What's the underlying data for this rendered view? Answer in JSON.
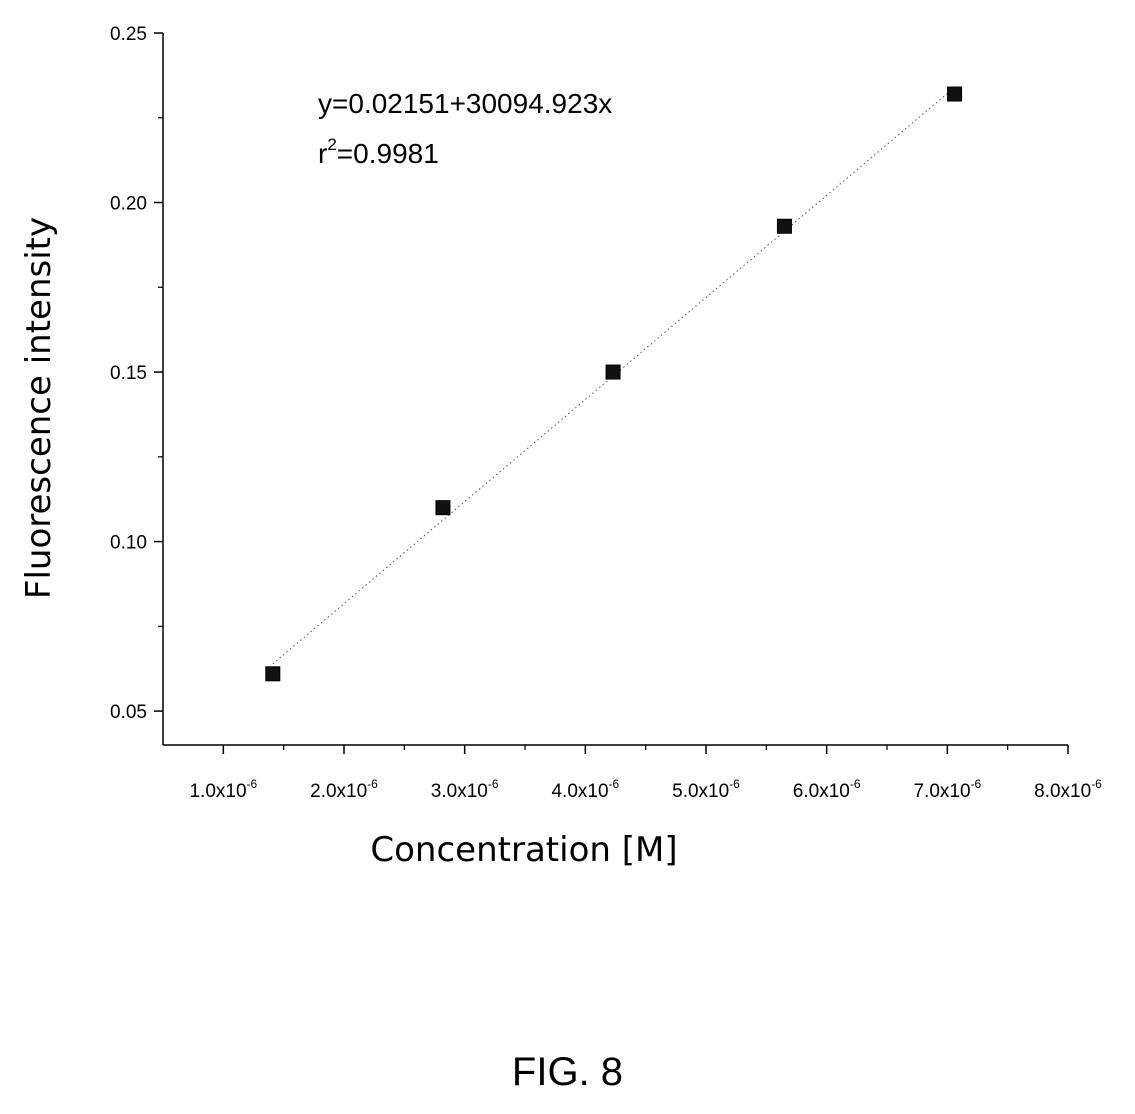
{
  "figure_label": "FIG. 8",
  "chart_data": {
    "type": "scatter",
    "xlabel": "Concentration [M]",
    "ylabel": "Fluorescence intensity",
    "xlim": [
      5e-07,
      8e-06
    ],
    "ylim": [
      0.04,
      0.25
    ],
    "x_ticks": [
      {
        "value": 1e-06,
        "mantissa": "1.0x10",
        "exponent": "-6"
      },
      {
        "value": 2e-06,
        "mantissa": "2.0x10",
        "exponent": "-6"
      },
      {
        "value": 3e-06,
        "mantissa": "3.0x10",
        "exponent": "-6"
      },
      {
        "value": 4e-06,
        "mantissa": "4.0x10",
        "exponent": "-6"
      },
      {
        "value": 5e-06,
        "mantissa": "5.0x10",
        "exponent": "-6"
      },
      {
        "value": 6e-06,
        "mantissa": "6.0x10",
        "exponent": "-6"
      },
      {
        "value": 7e-06,
        "mantissa": "7.0x10",
        "exponent": "-6"
      },
      {
        "value": 8e-06,
        "mantissa": "8.0x10",
        "exponent": "-6"
      }
    ],
    "y_ticks": [
      {
        "value": 0.05,
        "label": "0.05"
      },
      {
        "value": 0.1,
        "label": "0.10"
      },
      {
        "value": 0.15,
        "label": "0.15"
      },
      {
        "value": 0.2,
        "label": "0.20"
      },
      {
        "value": 0.25,
        "label": "0.25"
      }
    ],
    "series": [
      {
        "x": [
          1.41e-06,
          2.82e-06,
          4.23e-06,
          5.65e-06,
          7.06e-06
        ],
        "y": [
          0.061,
          0.11,
          0.15,
          0.193,
          0.232
        ]
      }
    ],
    "fit": {
      "intercept": 0.02151,
      "slope": 30094.923,
      "x_range": [
        1.41e-06,
        7.06e-06
      ],
      "equation": "y=0.02151+30094.923x",
      "r2_prefix": "r",
      "r2_exponent": "2",
      "r2_value": "=0.9981"
    },
    "grid": false,
    "legend": "none"
  }
}
